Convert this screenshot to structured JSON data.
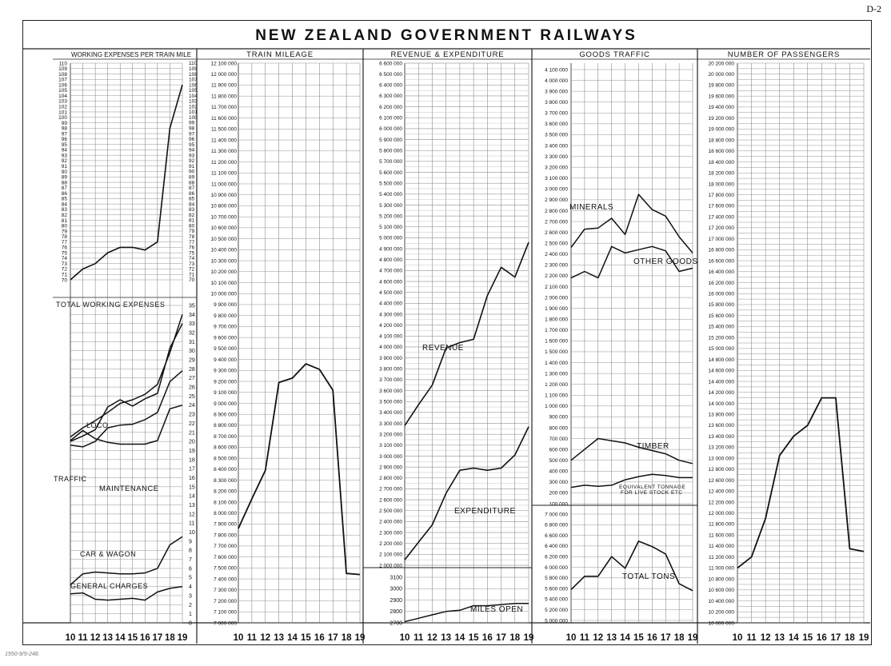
{
  "page_label": "D-2",
  "title": "NEW ZEALAND GOVERNMENT RAILWAYS",
  "footnote": "1550-9/9-248.",
  "years": [
    "10",
    "11",
    "12",
    "13",
    "14",
    "15",
    "16",
    "17",
    "18",
    "19"
  ],
  "chart_data": [
    {
      "type": "line",
      "title": "WORKING EXPENSES PER TRAIN MILE",
      "x": [
        "1910",
        "1911",
        "1912",
        "1913",
        "1914",
        "1915",
        "1916",
        "1917",
        "1918",
        "1919"
      ],
      "ylim": [
        70,
        110
      ],
      "series": [
        {
          "name": "WORKING EXPENSES PER TRAIN MILE",
          "values": [
            70,
            72,
            73,
            75,
            76,
            76,
            75.5,
            77,
            98,
            106
          ]
        }
      ],
      "subchart": {
        "title": "TOTAL WORKING EXPENSES",
        "ylim": [
          0,
          35
        ],
        "series": [
          {
            "name": "TOTAL WORKING EXPENSES",
            "values": [
              20.5,
              21.5,
              22.3,
              23.2,
              24.2,
              24.6,
              25.2,
              26.3,
              29.8,
              34
            ]
          },
          {
            "name": "LOCO",
            "values": [
              20,
              20.6,
              21.3,
              23.8,
              24.6,
              23.9,
              24.7,
              25.3,
              30.3,
              33
            ]
          },
          {
            "name": "TRAFFIC",
            "values": [
              19.6,
              19.4,
              20,
              21.5,
              21.8,
              21.9,
              22.4,
              23.2,
              26.6,
              27.8
            ]
          },
          {
            "name": "MAINTENANCE",
            "values": [
              20.1,
              21.2,
              20.3,
              19.9,
              19.7,
              19.7,
              19.7,
              20.1,
              23.6,
              24
            ]
          },
          {
            "name": "CAR & WAGON",
            "values": [
              4.2,
              5.4,
              5.6,
              5.5,
              5.4,
              5.4,
              5.5,
              6,
              8.6,
              9.5
            ]
          },
          {
            "name": "GENERAL CHARGES",
            "values": [
              3.2,
              3.3,
              2.6,
              2.5,
              2.6,
              2.7,
              2.5,
              3.4,
              3.8,
              4
            ]
          }
        ]
      }
    },
    {
      "type": "line",
      "title": "TRAIN MILEAGE",
      "x": [
        "1910",
        "1911",
        "1912",
        "1913",
        "1914",
        "1915",
        "1916",
        "1917",
        "1918",
        "1919"
      ],
      "ylim": [
        7000000,
        12100000
      ],
      "series": [
        {
          "name": "TRAIN MILEAGE",
          "values": [
            7860000,
            8130000,
            8390000,
            9190000,
            9230000,
            9360000,
            9310000,
            9120000,
            7450000,
            7440000
          ]
        }
      ]
    },
    {
      "type": "line",
      "title": "REVENUE & EXPENDITURE",
      "x": [
        "1910",
        "1911",
        "1912",
        "1913",
        "1914",
        "1915",
        "1916",
        "1917",
        "1918",
        "1919"
      ],
      "ylim": [
        2000000,
        6600000
      ],
      "series": [
        {
          "name": "REVENUE",
          "values": [
            3280000,
            3470000,
            3650000,
            3990000,
            4040000,
            4070000,
            4470000,
            4730000,
            4640000,
            4960000
          ]
        },
        {
          "name": "EXPENDITURE",
          "values": [
            2050000,
            2210000,
            2370000,
            2660000,
            2870000,
            2890000,
            2870000,
            2890000,
            3010000,
            3270000
          ]
        }
      ],
      "subchart": {
        "title": "MILES OPEN",
        "ylim": [
          2700,
          3100
        ],
        "series": [
          {
            "name": "MILES OPEN",
            "values": [
              2710,
              2740,
              2770,
              2800,
              2810,
              2850,
              2850,
              2860,
              2870,
              2870
            ]
          }
        ]
      }
    },
    {
      "type": "line",
      "title": "GOODS TRAFFIC",
      "x": [
        "1910",
        "1911",
        "1912",
        "1913",
        "1914",
        "1915",
        "1916",
        "1917",
        "1918",
        "1919"
      ],
      "ylim": [
        100000,
        4100000
      ],
      "series": [
        {
          "name": "MINERALS",
          "values": [
            2460000,
            2630000,
            2640000,
            2730000,
            2580000,
            2950000,
            2810000,
            2750000,
            2560000,
            2410000
          ]
        },
        {
          "name": "OTHER GOODS",
          "values": [
            2180000,
            2240000,
            2180000,
            2470000,
            2410000,
            2440000,
            2470000,
            2430000,
            2240000,
            2270000
          ]
        },
        {
          "name": "TIMBER",
          "values": [
            500000,
            600000,
            700000,
            680000,
            660000,
            620000,
            590000,
            560000,
            500000,
            470000
          ]
        },
        {
          "name": "EQUIVALENT TONNAGE FOR LIVE STOCK ETC",
          "values": [
            250000,
            270000,
            260000,
            270000,
            320000,
            350000,
            370000,
            360000,
            340000,
            340000
          ]
        }
      ],
      "subchart": {
        "title": "TOTAL TONS",
        "ylim": [
          5000000,
          7000000
        ],
        "series": [
          {
            "name": "TOTAL TONS",
            "values": [
              5580000,
              5830000,
              5830000,
              6200000,
              5980000,
              6490000,
              6390000,
              6250000,
              5690000,
              5560000
            ]
          }
        ]
      }
    },
    {
      "type": "line",
      "title": "NUMBER OF PASSENGERS",
      "x": [
        "1910",
        "1911",
        "1912",
        "1913",
        "1914",
        "1915",
        "1916",
        "1917",
        "1918",
        "1919"
      ],
      "ylim": [
        10000000,
        20200000
      ],
      "series": [
        {
          "name": "NUMBER OF PASSENGERS",
          "values": [
            11000000,
            11200000,
            11900000,
            13050000,
            13400000,
            13600000,
            14100000,
            14100000,
            11350000,
            11300000
          ]
        }
      ]
    }
  ]
}
